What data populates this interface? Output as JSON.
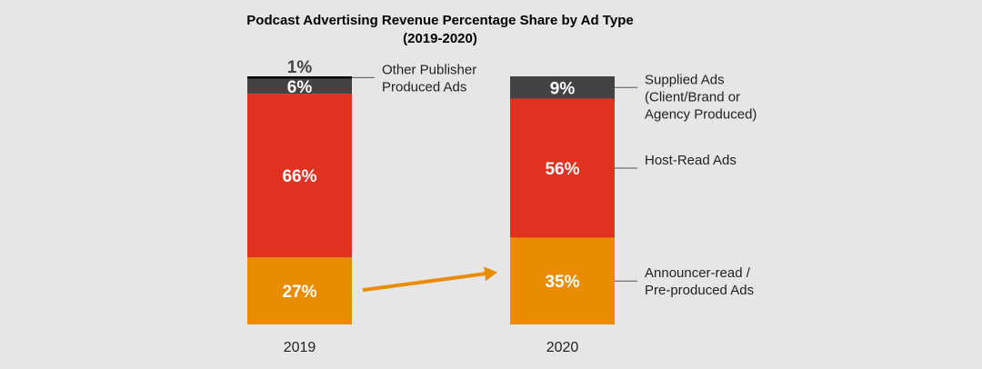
{
  "chart_data": {
    "type": "bar",
    "stacked": true,
    "title": "Podcast Advertising Revenue Percentage Share by Ad Type",
    "subtitle": "(2019-2020)",
    "categories": [
      "2019",
      "2020"
    ],
    "ylim": [
      0,
      100
    ],
    "series": [
      {
        "name": "Announcer-read / Pre-produced Ads",
        "color": "#ea8c00",
        "values": [
          27,
          35
        ],
        "labels": [
          "27%",
          "35%"
        ]
      },
      {
        "name": "Host-Read Ads",
        "color": "#e03121",
        "values": [
          66,
          56
        ],
        "labels": [
          "66%",
          "56%"
        ]
      },
      {
        "name": "Supplied Ads (Client/Brand or Agency Produced)",
        "color": "#434343",
        "values": [
          6,
          9
        ],
        "labels": [
          "6%",
          "9%"
        ]
      },
      {
        "name": "Other Publisher Produced Ads",
        "color": "#000000",
        "values": [
          1,
          0
        ],
        "labels": [
          "1%",
          ""
        ]
      }
    ],
    "annotations": [
      {
        "series": "Other Publisher Produced Ads",
        "category": "2019",
        "lines": [
          "Other Publisher",
          "Produced Ads"
        ]
      },
      {
        "series": "Supplied Ads (Client/Brand or Agency Produced)",
        "category": "2020",
        "lines": [
          "Supplied Ads",
          "(Client/Brand or",
          "Agency Produced)"
        ]
      },
      {
        "series": "Host-Read Ads",
        "category": "2020",
        "lines": [
          "Host-Read Ads"
        ]
      },
      {
        "series": "Announcer-read / Pre-produced Ads",
        "category": "2020",
        "lines": [
          "Announcer-read /",
          "Pre-produced Ads"
        ]
      }
    ],
    "arrow": {
      "from": "2019",
      "to": "2020",
      "series": "Announcer-read / Pre-produced Ads",
      "color": "#ea8c00"
    }
  }
}
